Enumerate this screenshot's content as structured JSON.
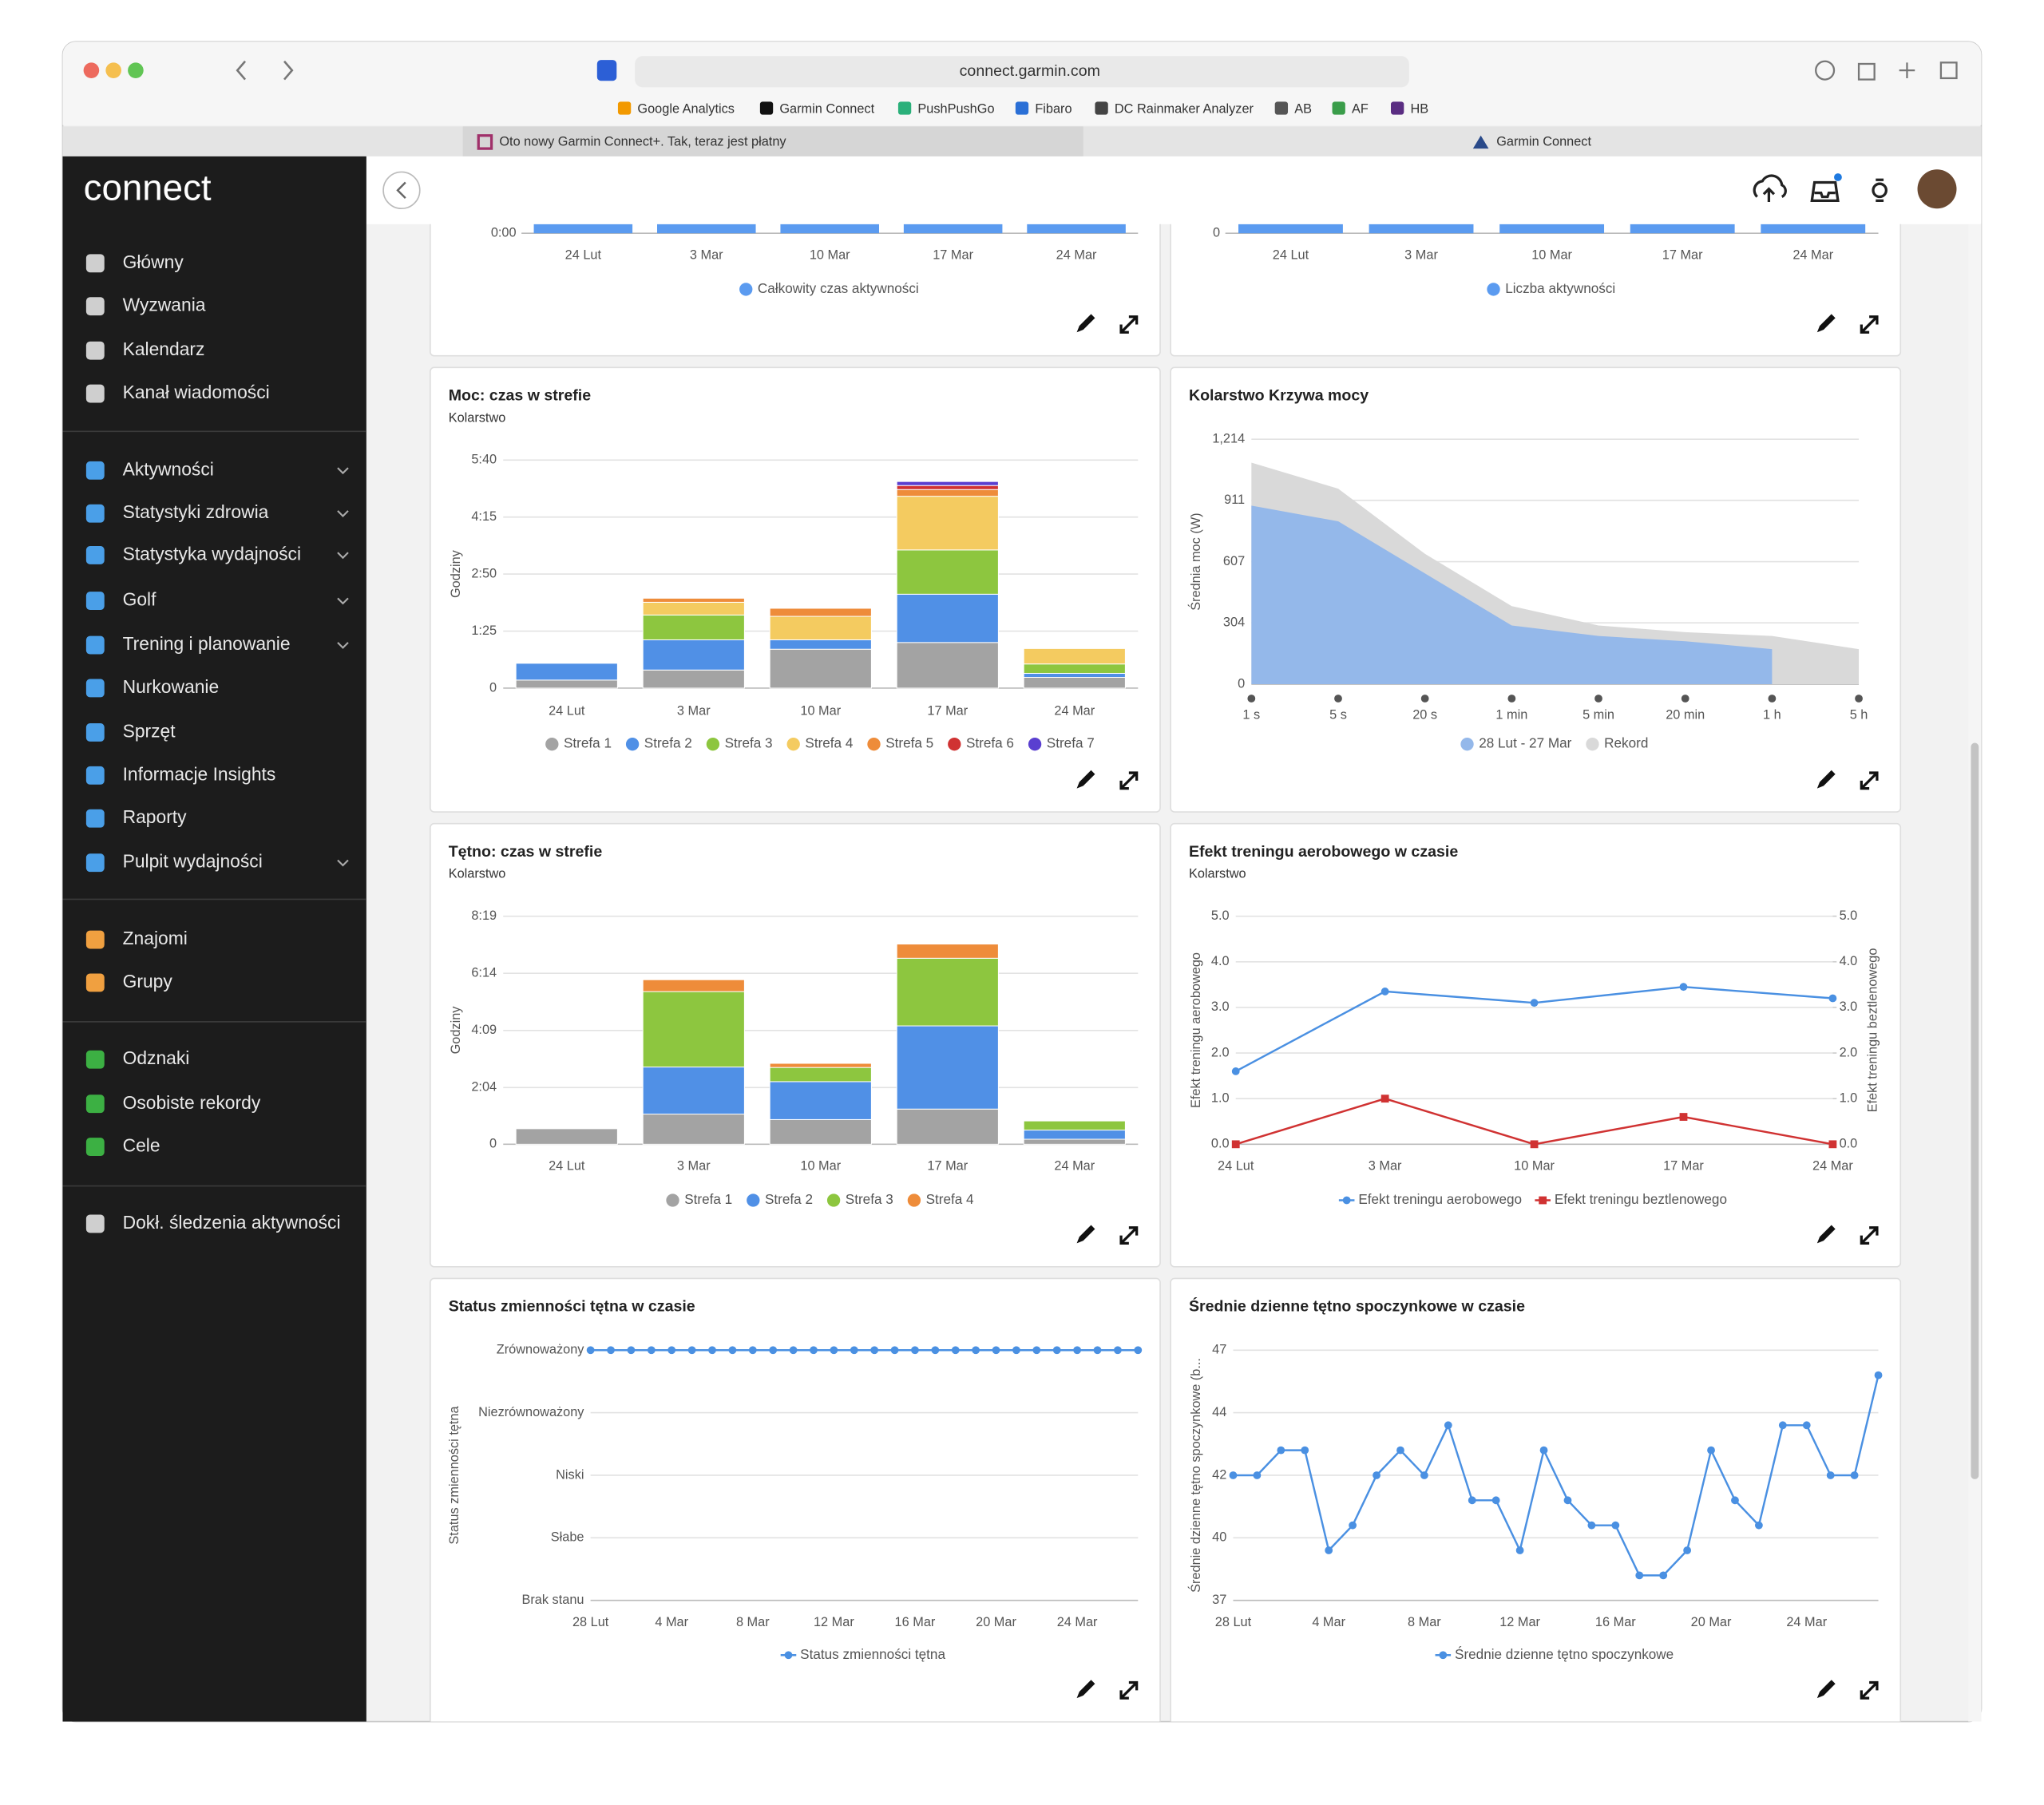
{
  "browser": {
    "url": "connect.garmin.com",
    "bookmarks": [
      "Google Analytics",
      "Garmin Connect",
      "PushPushGo",
      "Fibaro",
      "DC Rainmaker Analyzer",
      "AB",
      "AF",
      "HB"
    ],
    "tabs": [
      "Oto nowy Garmin Connect+. Tak, teraz jest płatny",
      "Garmin Connect"
    ]
  },
  "sidebar": {
    "logo": "connect",
    "groups": [
      [
        {
          "label": "Główny"
        },
        {
          "label": "Wyzwania"
        },
        {
          "label": "Kalendarz"
        },
        {
          "label": "Kanał wiadomości"
        }
      ],
      [
        {
          "label": "Aktywności",
          "expandable": true
        },
        {
          "label": "Statystyki zdrowia",
          "expandable": true
        },
        {
          "label": "Statystyka wydajności",
          "expandable": true
        },
        {
          "label": "Golf",
          "expandable": true
        },
        {
          "label": "Trening i planowanie",
          "expandable": true
        },
        {
          "label": "Nurkowanie"
        },
        {
          "label": "Sprzęt"
        },
        {
          "label": "Informacje Insights"
        },
        {
          "label": "Raporty"
        },
        {
          "label": "Pulpit wydajności",
          "expandable": true
        }
      ],
      [
        {
          "label": "Znajomi"
        },
        {
          "label": "Grupy"
        }
      ],
      [
        {
          "label": "Odznaki"
        },
        {
          "label": "Osobiste rekordy"
        },
        {
          "label": "Cele"
        }
      ],
      [
        {
          "label": "Dokł. śledzenia aktywności"
        }
      ]
    ]
  },
  "chart_data": [
    {
      "type": "bar",
      "categories": [
        "24 Lut",
        "3 Mar",
        "10 Mar",
        "17 Mar",
        "24 Mar"
      ],
      "yticks": [
        {
          "value": 0,
          "label": "0:00"
        }
      ],
      "series": [
        {
          "name": "Całkowity czas aktywności",
          "color": "#5b9bf0"
        }
      ]
    },
    {
      "type": "bar",
      "categories": [
        "24 Lut",
        "3 Mar",
        "10 Mar",
        "17 Mar",
        "24 Mar"
      ],
      "yticks": [
        0
      ],
      "series": [
        {
          "name": "Liczba aktywności",
          "color": "#5b9bf0"
        }
      ]
    },
    {
      "type": "stacked_bar",
      "title": "Moc: czas w strefie",
      "subtitle": "Kolarstwo",
      "ylabel": "Godziny",
      "categories": [
        "24 Lut",
        "3 Mar",
        "10 Mar",
        "17 Mar",
        "24 Mar"
      ],
      "ylim": [
        0,
        340
      ],
      "yticks": [
        0,
        {
          "value": 85,
          "label": "1:25"
        },
        {
          "value": 170,
          "label": "2:50"
        },
        {
          "value": 255,
          "label": "4:15"
        },
        {
          "value": 340,
          "label": "5:40"
        }
      ],
      "series": [
        {
          "name": "Strefa 1",
          "color": "#a3a3a3",
          "values": [
            12,
            27,
            58,
            68,
            16
          ]
        },
        {
          "name": "Strefa 2",
          "color": "#5090e6",
          "values": [
            25,
            45,
            14,
            72,
            6
          ]
        },
        {
          "name": "Strefa 3",
          "color": "#8dc63f",
          "values": [
            0,
            37,
            0,
            66,
            14
          ]
        },
        {
          "name": "Strefa 4",
          "color": "#f4cb60",
          "values": [
            0,
            19,
            35,
            80,
            23
          ]
        },
        {
          "name": "Strefa 5",
          "color": "#ee8c3a",
          "values": [
            0,
            6,
            12,
            10,
            0
          ]
        },
        {
          "name": "Strefa 6",
          "color": "#d03232",
          "values": [
            0,
            0,
            0,
            6,
            0
          ]
        },
        {
          "name": "Strefa 7",
          "color": "#5a3fd0",
          "values": [
            0,
            0,
            0,
            6,
            0
          ]
        }
      ]
    },
    {
      "type": "area",
      "title": "Kolarstwo Krzywa mocy",
      "ylabel": "Średnia moc (W)",
      "categories": [
        "1 s",
        "5 s",
        "20 s",
        "1 min",
        "5 min",
        "20 min",
        "1 h",
        "5 h"
      ],
      "ylim": [
        0,
        1214
      ],
      "yticks": [
        0,
        304,
        607,
        911,
        {
          "value": 1214,
          "label": "1,214"
        }
      ],
      "series": [
        {
          "name": "Rekord",
          "color": "#d9d9d9",
          "values": [
            1098,
            969,
            646,
            387,
            291,
            258,
            239,
            174
          ]
        },
        {
          "name": "28 Lut - 27 Mar",
          "color": "#94b8ea",
          "values": [
            885,
            807,
            549,
            291,
            239,
            213,
            174,
            null
          ]
        }
      ],
      "legend_order": [
        1,
        0
      ]
    },
    {
      "type": "stacked_bar",
      "title": "Tętno: czas w strefie",
      "subtitle": "Kolarstwo",
      "ylabel": "Godziny",
      "categories": [
        "24 Lut",
        "3 Mar",
        "10 Mar",
        "17 Mar",
        "24 Mar"
      ],
      "ylim": [
        0,
        499
      ],
      "yticks": [
        0,
        {
          "value": 124,
          "label": "2:04"
        },
        {
          "value": 249,
          "label": "4:09"
        },
        {
          "value": 374,
          "label": "6:14"
        },
        {
          "value": 499,
          "label": "8:19"
        }
      ],
      "series": [
        {
          "name": "Strefa 1",
          "color": "#a3a3a3",
          "values": [
            34,
            66,
            54,
            77,
            11
          ]
        },
        {
          "name": "Strefa 2",
          "color": "#5090e6",
          "values": [
            0,
            103,
            83,
            182,
            20
          ]
        },
        {
          "name": "Strefa 3",
          "color": "#8dc63f",
          "values": [
            0,
            165,
            31,
            148,
            20
          ]
        },
        {
          "name": "Strefa 4",
          "color": "#ee8c3a",
          "values": [
            0,
            26,
            9,
            31,
            0
          ]
        }
      ]
    },
    {
      "type": "line",
      "title": "Efekt treningu aerobowego w czasie",
      "subtitle": "Kolarstwo",
      "ylabel": "Efekt treningu aerobowego",
      "y2label": "Efekt treningu beztlenowego",
      "categories": [
        "24 Lut",
        "3 Mar",
        "10 Mar",
        "17 Mar",
        "24 Mar"
      ],
      "ylim": [
        0,
        5
      ],
      "y2lim": [
        0,
        5
      ],
      "yticks": [
        {
          "value": 0,
          "label": "0.0"
        },
        {
          "value": 1,
          "label": "1.0"
        },
        {
          "value": 2,
          "label": "2.0"
        },
        {
          "value": 3,
          "label": "3.0"
        },
        {
          "value": 4,
          "label": "4.0"
        },
        {
          "value": 5,
          "label": "5.0"
        }
      ],
      "y2ticks": [
        {
          "value": 0,
          "label": "0.0"
        },
        {
          "value": 1,
          "label": "1.0"
        },
        {
          "value": 2,
          "label": "2.0"
        },
        {
          "value": 3,
          "label": "3.0"
        },
        {
          "value": 4,
          "label": "4.0"
        },
        {
          "value": 5,
          "label": "5.0"
        }
      ],
      "series": [
        {
          "name": "Efekt treningu aerobowego",
          "color": "#4a90e2",
          "marker": "circle",
          "values": [
            1.6,
            3.35,
            3.1,
            3.45,
            3.2
          ]
        },
        {
          "name": "Efekt treningu beztlenowego",
          "color": "#d03232",
          "marker": "square",
          "axis": "y2",
          "values": [
            0,
            1.0,
            0,
            0.6,
            0
          ]
        }
      ]
    },
    {
      "type": "line",
      "title": "Status zmienności tętna w czasie",
      "ylabel": "Status zmienności tętna",
      "categories": [
        "28 Lut",
        null,
        null,
        null,
        "4 Mar",
        null,
        null,
        null,
        "8 Mar",
        null,
        null,
        null,
        "12 Mar",
        null,
        null,
        null,
        "16 Mar",
        null,
        null,
        null,
        "20 Mar",
        null,
        null,
        null,
        "24 Mar",
        null,
        null,
        null
      ],
      "ylim": [
        0,
        4
      ],
      "yticks": [
        {
          "value": 0,
          "label": "Brak stanu"
        },
        {
          "value": 1,
          "label": "Słabe"
        },
        {
          "value": 2,
          "label": "Niski"
        },
        {
          "value": 3,
          "label": "Niezrównoważony"
        },
        {
          "value": 4,
          "label": "Zrównoważony"
        }
      ],
      "series": [
        {
          "name": "Status zmienności tętna",
          "color": "#4a90e2",
          "marker": "circle",
          "values": [
            4,
            4,
            4,
            4,
            4,
            4,
            4,
            4,
            4,
            4,
            4,
            4,
            4,
            4,
            4,
            4,
            4,
            4,
            4,
            4,
            4,
            4,
            4,
            4,
            4,
            4,
            4,
            4
          ]
        }
      ]
    },
    {
      "type": "line",
      "title": "Średnie dzienne tętno spoczynkowe w czasie",
      "ylabel": "Średnie dzienne tętno spoczynkowe (b...",
      "categories": [
        "28 Lut",
        null,
        null,
        null,
        "4 Mar",
        null,
        null,
        null,
        "8 Mar",
        null,
        null,
        null,
        "12 Mar",
        null,
        null,
        null,
        "16 Mar",
        null,
        null,
        null,
        "20 Mar",
        null,
        null,
        null,
        "24 Mar",
        null,
        null,
        null
      ],
      "ylim": [
        37,
        47
      ],
      "yticks": [
        37,
        {
          "value": 39.5,
          "label": "40"
        },
        42,
        {
          "value": 44.5,
          "label": "44"
        },
        47
      ],
      "series": [
        {
          "name": "Średnie dzienne tętno spoczynkowe",
          "color": "#4a90e2",
          "marker": "circle",
          "values": [
            42,
            42,
            43,
            43,
            39,
            40,
            42,
            43,
            42,
            44,
            41,
            41,
            39,
            43,
            41,
            40,
            40,
            38,
            38,
            39,
            43,
            41,
            40,
            44,
            44,
            42,
            42,
            46
          ]
        }
      ]
    }
  ]
}
